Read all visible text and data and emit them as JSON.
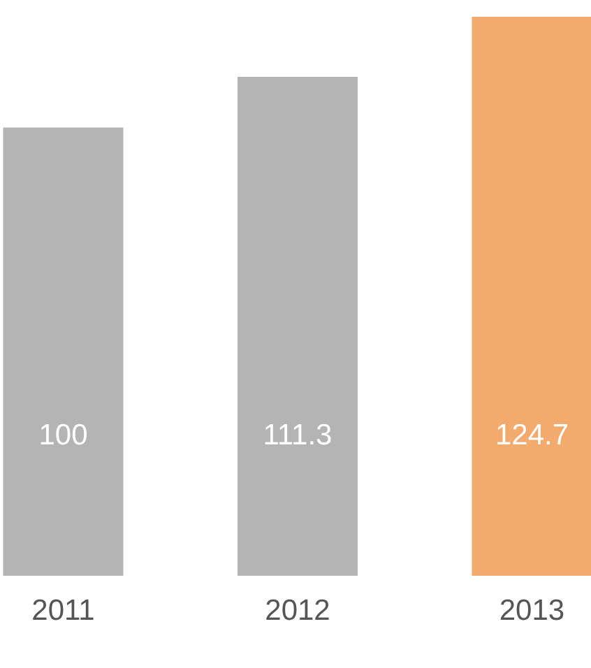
{
  "chart_data": {
    "type": "bar",
    "categories": [
      "2011",
      "2012",
      "2013"
    ],
    "values": [
      100,
      111.3,
      124.7
    ],
    "colors": [
      "#b4b4b4",
      "#b4b4b4",
      "#f2ab6c"
    ],
    "data_labels": true
  }
}
